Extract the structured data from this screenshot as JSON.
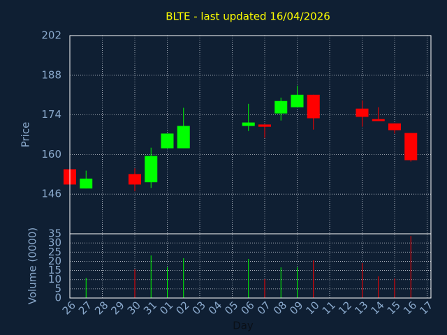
{
  "chart_data": [
    {
      "type": "candlestick",
      "title": "BLTE - last updated 16/04/2026",
      "ylabel": "Price",
      "up_color": "#00ff00",
      "down_color": "#ff0000",
      "open": [
        154.8,
        148.0,
        null,
        null,
        153.1,
        150.2,
        162.2,
        162.2,
        null,
        null,
        null,
        170.1,
        170.6,
        174.5,
        176.7,
        181.1,
        null,
        null,
        176.2,
        172.5,
        171.0,
        167.6,
        null
      ],
      "high": [
        154.8,
        154.3,
        null,
        null,
        155.1,
        162.4,
        167.4,
        176.5,
        null,
        null,
        null,
        177.9,
        170.6,
        180.1,
        184.3,
        181.1,
        null,
        null,
        179.1,
        176.7,
        171.0,
        167.6,
        null
      ],
      "low": [
        149.4,
        148.0,
        null,
        null,
        147.0,
        148.2,
        162.2,
        162.2,
        null,
        null,
        null,
        168.3,
        165.9,
        172.0,
        176.7,
        168.8,
        null,
        null,
        169.8,
        171.8,
        167.4,
        157.5,
        null
      ],
      "close": [
        149.4,
        151.5,
        null,
        null,
        149.4,
        159.5,
        167.4,
        170.1,
        null,
        null,
        null,
        171.3,
        169.8,
        178.9,
        181.1,
        172.8,
        null,
        null,
        173.3,
        171.8,
        168.6,
        158.0,
        null
      ],
      "ylim": [
        132,
        202
      ],
      "yticks": [
        146,
        160,
        174,
        188,
        202
      ],
      "grid": true
    },
    {
      "type": "bar",
      "ylabel": "Volume (0000)",
      "xlabel": "Day",
      "categories": [
        "26",
        "27",
        "28",
        "29",
        "30",
        "31",
        "01",
        "02",
        "03",
        "04",
        "05",
        "06",
        "07",
        "08",
        "09",
        "10",
        "11",
        "12",
        "13",
        "14",
        "15",
        "16",
        "17"
      ],
      "values": [
        null,
        11.0,
        null,
        null,
        15.6,
        23.2,
        16.7,
        21.7,
        null,
        null,
        null,
        21.3,
        10.3,
        16.7,
        16.7,
        20.5,
        null,
        null,
        19.0,
        11.8,
        10.6,
        33.8,
        null
      ],
      "ylim": [
        0,
        35
      ],
      "yticks": [
        0,
        5,
        10,
        15,
        20,
        25,
        30,
        35
      ],
      "grid": true
    }
  ]
}
